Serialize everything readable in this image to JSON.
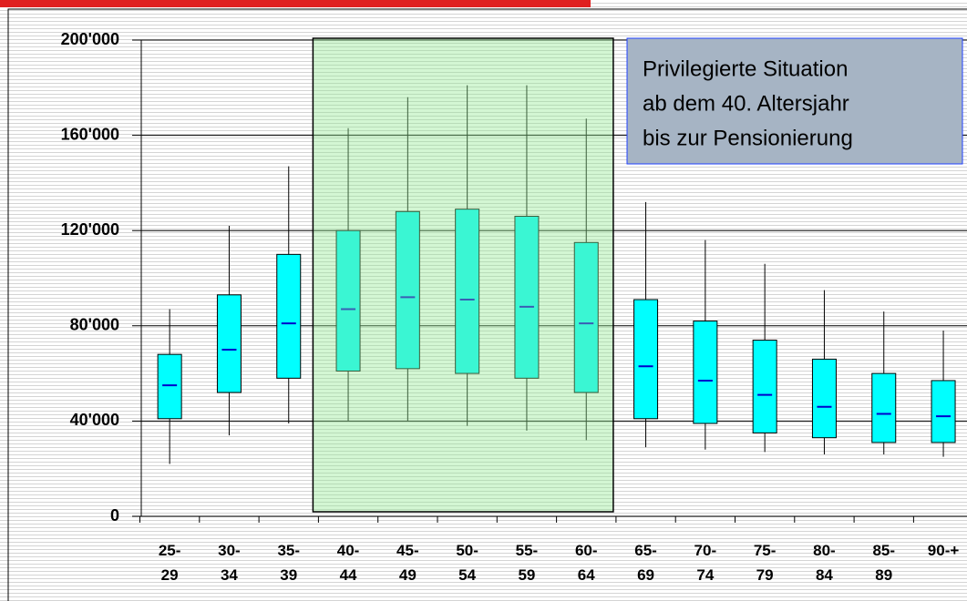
{
  "chart_data": {
    "type": "box",
    "categories": [
      "25-\n29",
      "30-\n34",
      "35-\n39",
      "40-\n44",
      "45-\n49",
      "50-\n54",
      "55-\n59",
      "60-\n64",
      "65-\n69",
      "70-\n74",
      "75-\n79",
      "80-\n84",
      "85-\n89",
      "90-+"
    ],
    "series": [
      {
        "color": "#00ffff",
        "median_color": "#0000cc",
        "low": [
          22000,
          34000,
          39000,
          40000,
          40000,
          38000,
          36000,
          32000,
          29000,
          28000,
          27000,
          26000,
          26000,
          25000
        ],
        "q1": [
          41000,
          52000,
          58000,
          61000,
          62000,
          60000,
          58000,
          52000,
          41000,
          39000,
          35000,
          33000,
          31000,
          31000
        ],
        "median": [
          55000,
          70000,
          81000,
          87000,
          92000,
          91000,
          88000,
          81000,
          63000,
          57000,
          51000,
          46000,
          43000,
          42000
        ],
        "q3": [
          68000,
          93000,
          110000,
          120000,
          128000,
          129000,
          126000,
          115000,
          91000,
          82000,
          74000,
          66000,
          60000,
          57000
        ],
        "high": [
          87000,
          122000,
          147000,
          163000,
          176000,
          181000,
          181000,
          167000,
          132000,
          116000,
          106000,
          95000,
          86000,
          78000
        ]
      }
    ],
    "ylim": [
      0,
      200000
    ],
    "yticks": [
      {
        "value": 0,
        "label": "0"
      },
      {
        "value": 40000,
        "label": "40'000"
      },
      {
        "value": 80000,
        "label": "80'000"
      },
      {
        "value": 120000,
        "label": "120'000"
      },
      {
        "value": 160000,
        "label": "160'000"
      },
      {
        "value": 200000,
        "label": "200'000"
      }
    ],
    "grid": true,
    "annotation": [
      "Privilegierte Situation",
      "ab dem 40. Altersjahr",
      "bis zur Pensionierung"
    ]
  }
}
